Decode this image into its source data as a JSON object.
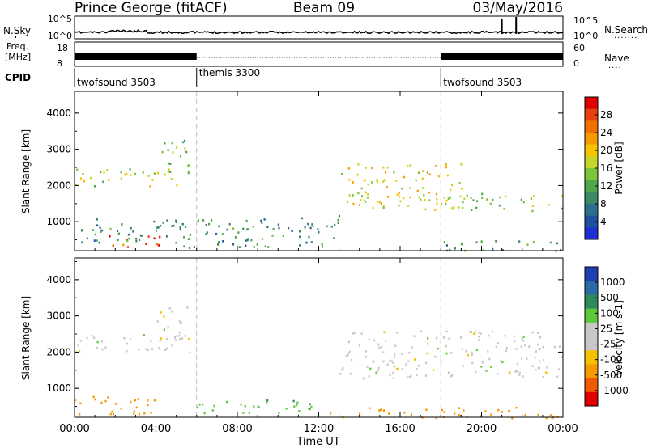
{
  "header": {
    "station": "Prince George (fitACF)",
    "beam": "Beam 09",
    "date": "03/May/2016"
  },
  "noise_panel": {
    "left_label": "N.Sky",
    "right_label": "N.Search",
    "left_ticks": [
      "10^5",
      "10^0"
    ],
    "right_ticks": [
      "10^5",
      "10^0"
    ]
  },
  "freq_panel": {
    "left_label_top": "Freq.",
    "left_label_bottom": "[MHz]",
    "right_label": "Nave",
    "left_ticks": [
      "18",
      "8"
    ],
    "right_ticks": [
      "60",
      "0"
    ]
  },
  "cpid": {
    "label": "CPID",
    "segments": [
      {
        "name": "twofsound 3503",
        "start_hour": 0,
        "end_hour": 6
      },
      {
        "name": "themis 3300",
        "start_hour": 6,
        "end_hour": 18
      },
      {
        "name": "twofsound 3503",
        "start_hour": 18,
        "end_hour": 24
      }
    ]
  },
  "colors": {
    "power_scale": [
      "#1f2fd6",
      "#1e4fa0",
      "#2d6e8c",
      "#3c8a64",
      "#4ea84a",
      "#7cc43a",
      "#c8d62a",
      "#f5c400",
      "#f59a00",
      "#f07000",
      "#e84010",
      "#e00000"
    ],
    "velocity_scale": [
      "#e00000",
      "#f05a00",
      "#f59a00",
      "#f5c000",
      "#c8c8c8",
      "#c8c8c8",
      "#5cc83a",
      "#2e8a5a",
      "#2a6aa8",
      "#1f3fb0"
    ],
    "noise_trace": "#000000",
    "grid_dash": "#bbbbbb"
  },
  "chart_data": [
    {
      "type": "heatmap",
      "ylabel": "Slant Range [km]",
      "colorbar_label": "Power [dB]",
      "colorbar_ticks": [
        "28",
        "24",
        "20",
        "16",
        "12",
        "8",
        "4"
      ],
      "colorbar_range": [
        0,
        30
      ],
      "ylim": [
        200,
        4600
      ],
      "yticks": [
        "4000",
        "3000",
        "2000",
        "1000"
      ],
      "xlim": [
        0,
        24
      ],
      "echo_regions": [
        {
          "t0": 0.0,
          "t1": 5.8,
          "r0": 2000,
          "r1": 2500,
          "power_db": 16
        },
        {
          "t0": 4.0,
          "t1": 5.6,
          "r0": 2300,
          "r1": 3300,
          "power_db": 14
        },
        {
          "t0": 1.5,
          "t1": 4.3,
          "r0": 300,
          "r1": 650,
          "power_db": 28
        },
        {
          "t0": 0.0,
          "t1": 6.0,
          "r0": 300,
          "r1": 1100,
          "power_db": 8
        },
        {
          "t0": 6.0,
          "t1": 13.0,
          "r0": 300,
          "r1": 1200,
          "power_db": 8
        },
        {
          "t0": 13.0,
          "t1": 19.0,
          "r0": 1400,
          "r1": 2700,
          "power_db": 18
        },
        {
          "t0": 17.0,
          "t1": 24.0,
          "r0": 1300,
          "r1": 1800,
          "power_db": 14
        },
        {
          "t0": 18.0,
          "t1": 24.0,
          "r0": 200,
          "r1": 500,
          "power_db": 10
        }
      ]
    },
    {
      "type": "heatmap",
      "ylabel": "Slant Range [km]",
      "colorbar_label": "Velocity [m s-1]",
      "colorbar_ticks": [
        "1000",
        "500",
        "100",
        "25",
        "-25",
        "-100",
        "-500",
        "-1000"
      ],
      "colorbar_range": [
        -1200,
        1200
      ],
      "ylim": [
        200,
        4600
      ],
      "yticks": [
        "4000",
        "3000",
        "2000",
        "1000"
      ],
      "xlim": [
        0,
        24
      ],
      "xticks": [
        "00:00",
        "04:00",
        "08:00",
        "12:00",
        "16:00",
        "20:00",
        "00:00"
      ],
      "xlabel": "Time UT",
      "echo_regions": [
        {
          "t0": 0.0,
          "t1": 5.8,
          "r0": 2000,
          "r1": 2500,
          "velocity": 0
        },
        {
          "t0": 4.0,
          "t1": 5.6,
          "r0": 2300,
          "r1": 3300,
          "velocity": 0
        },
        {
          "t0": 0.0,
          "t1": 4.5,
          "r0": 300,
          "r1": 800,
          "velocity": -300
        },
        {
          "t0": 6.0,
          "t1": 12.0,
          "r0": 300,
          "r1": 700,
          "velocity": 80
        },
        {
          "t0": 13.0,
          "t1": 24.0,
          "r0": 1300,
          "r1": 2600,
          "velocity": 0
        },
        {
          "t0": 12.0,
          "t1": 24.0,
          "r0": 200,
          "r1": 500,
          "velocity": -150
        }
      ]
    }
  ]
}
